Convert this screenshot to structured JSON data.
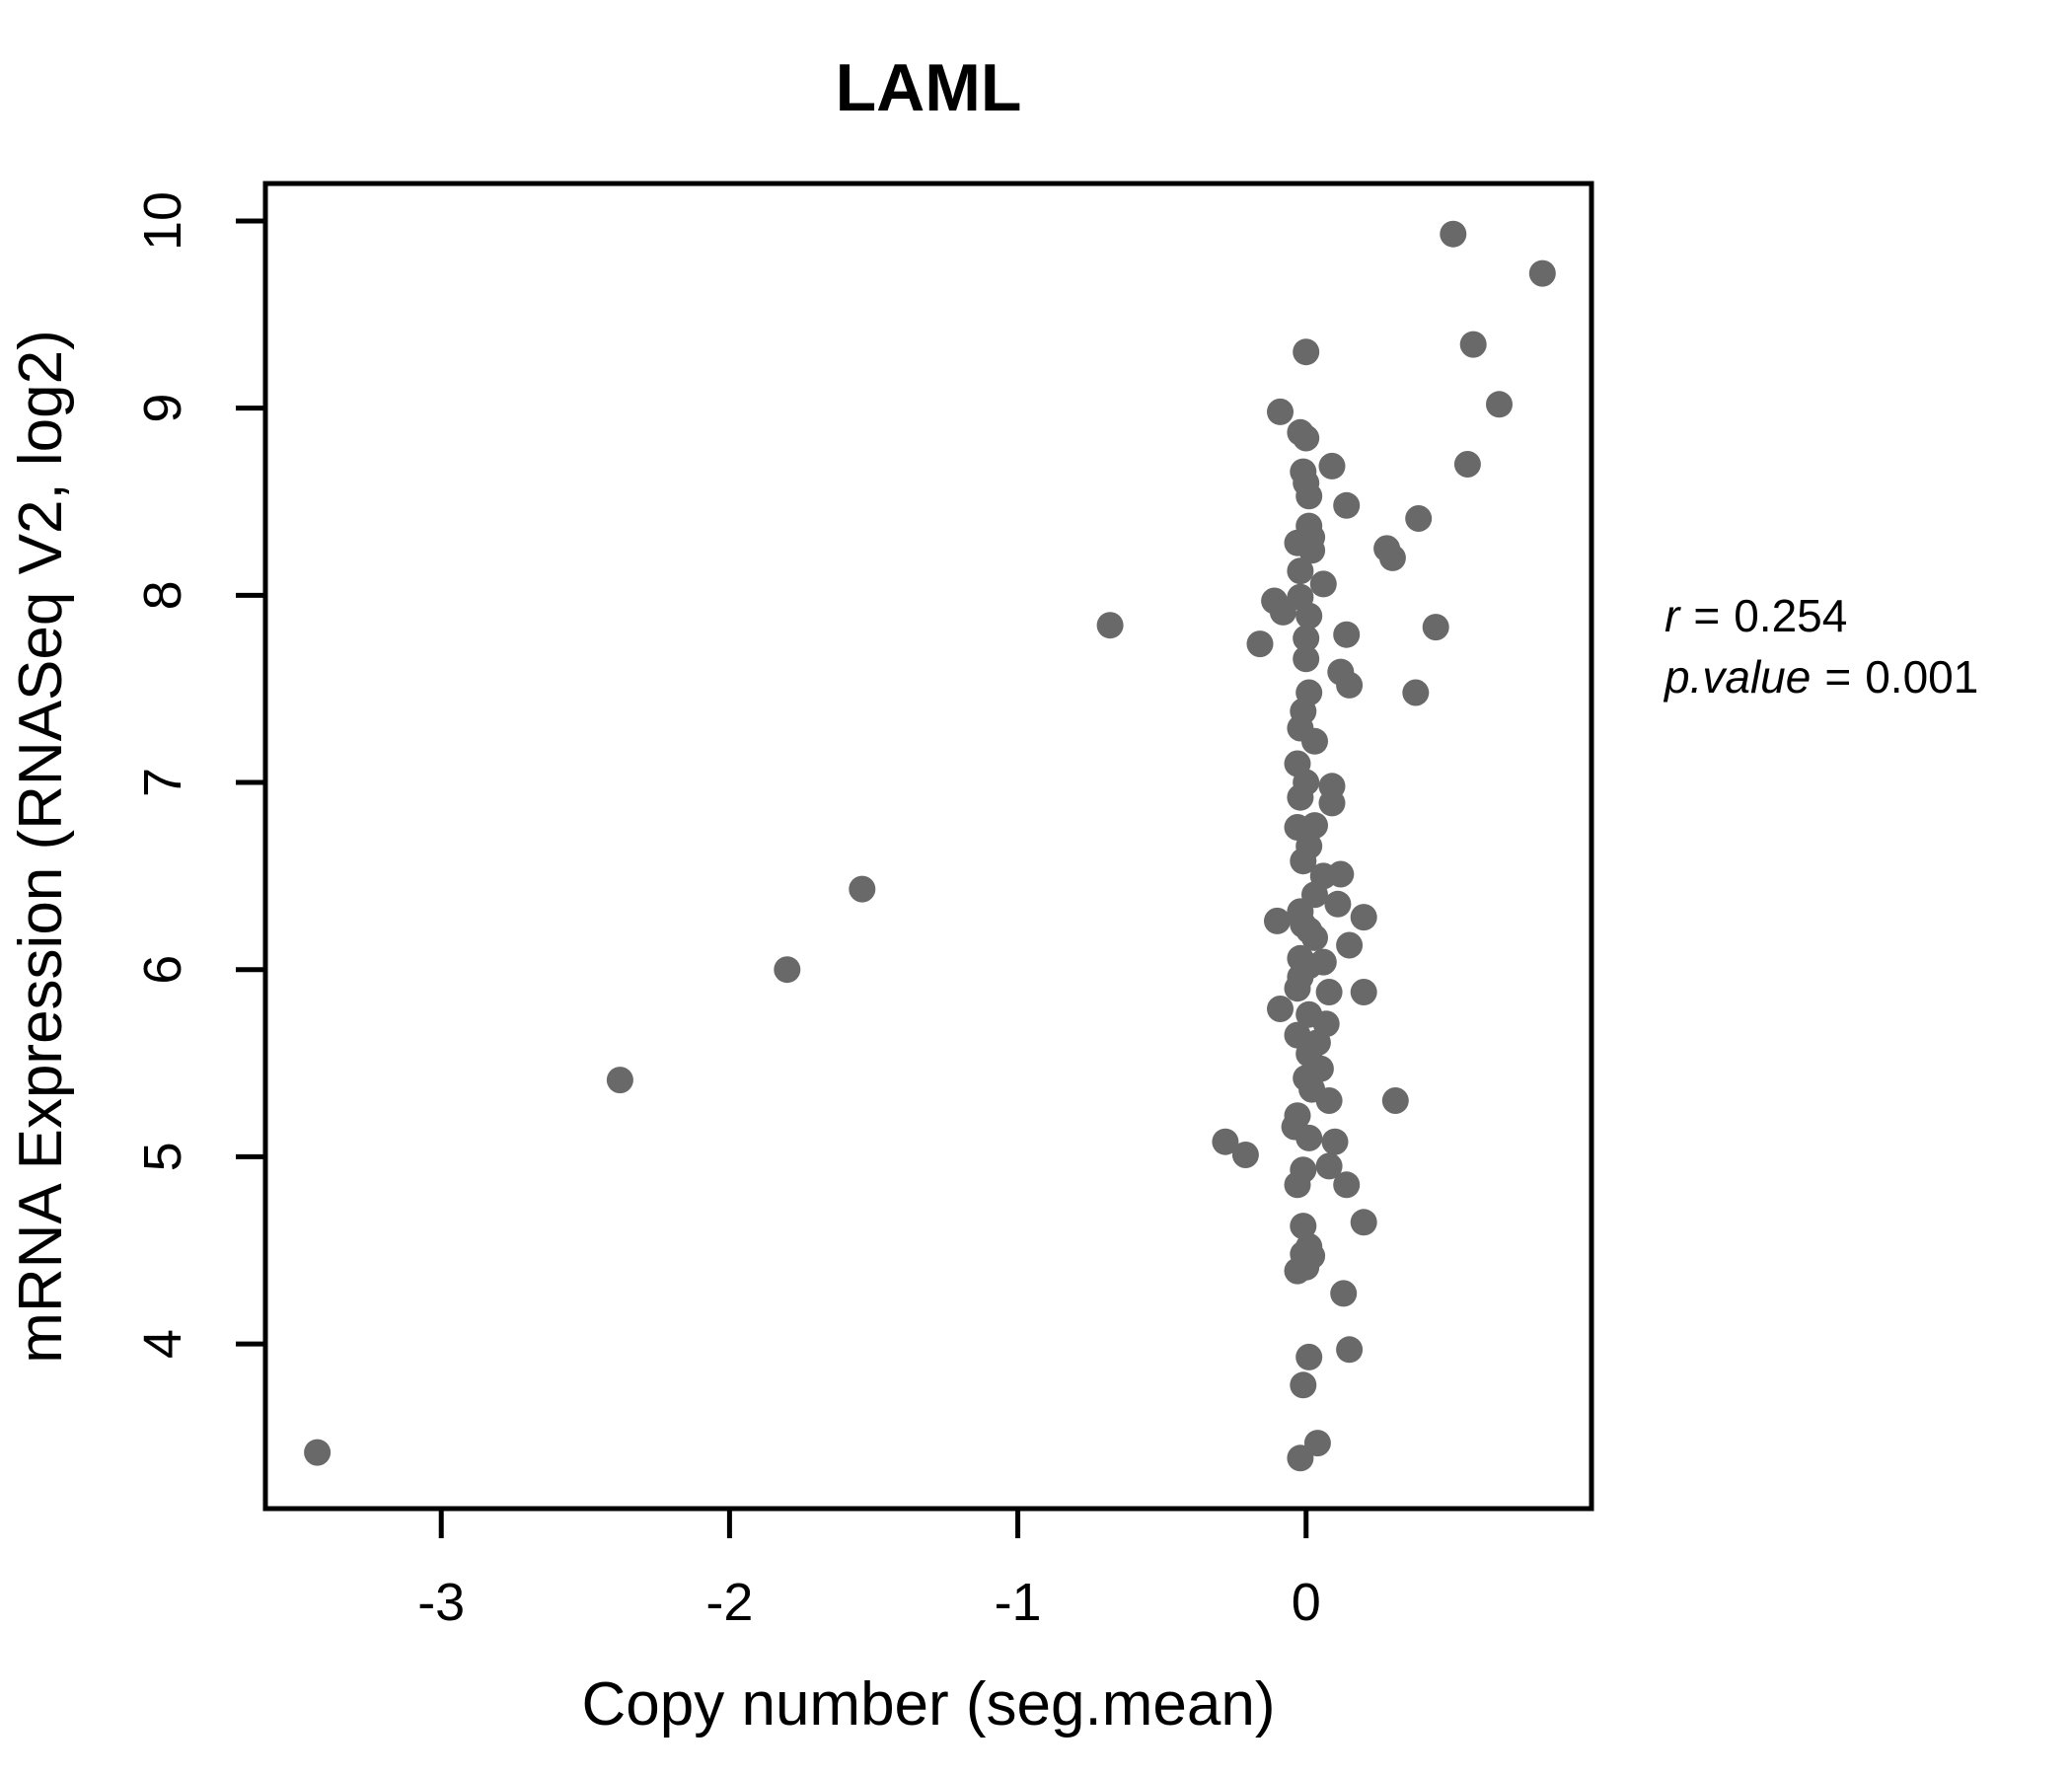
{
  "chart_data": {
    "type": "scatter",
    "title": "LAML",
    "xlabel": "Copy number (seg.mean)",
    "ylabel": "mRNA Expression (RNASeq V2, log2)",
    "xlim": [
      -3.61,
      0.99
    ],
    "ylim": [
      3.12,
      10.2
    ],
    "x_ticks": [
      "-3",
      "-2",
      "-1",
      "0"
    ],
    "x_tick_values": [
      -3,
      -2,
      -1,
      0
    ],
    "y_ticks": [
      "4",
      "5",
      "6",
      "7",
      "8",
      "9",
      "10"
    ],
    "y_tick_values": [
      4,
      5,
      6,
      7,
      8,
      9,
      10
    ],
    "grid": false,
    "legend": "none",
    "title_color": "#6b6b6b",
    "point_color": "#696969",
    "axis_color": "#000000",
    "annotation": {
      "lines": [
        {
          "var": "r",
          "eq": "=",
          "value": "0.254"
        },
        {
          "var": "p.value",
          "eq": "=",
          "value": "0.001"
        }
      ]
    },
    "points": [
      [
        -3.43,
        3.42
      ],
      [
        -2.38,
        5.41
      ],
      [
        -1.8,
        6.0
      ],
      [
        -1.54,
        6.43
      ],
      [
        -0.68,
        7.84
      ],
      [
        -0.28,
        5.08
      ],
      [
        -0.21,
        5.01
      ],
      [
        -0.16,
        7.74
      ],
      [
        -0.11,
        7.97
      ],
      [
        -0.08,
        7.91
      ],
      [
        0.51,
        9.93
      ],
      [
        0.82,
        9.72
      ],
      [
        0.58,
        9.34
      ],
      [
        0.67,
        9.02
      ],
      [
        0.56,
        8.7
      ],
      [
        0.39,
        8.41
      ],
      [
        0.28,
        8.25
      ],
      [
        0.3,
        8.2
      ],
      [
        0.45,
        7.83
      ],
      [
        0.38,
        7.48
      ],
      [
        0.0,
        9.3
      ],
      [
        -0.09,
        8.98
      ],
      [
        -0.02,
        8.87
      ],
      [
        0.0,
        8.84
      ],
      [
        0.09,
        8.69
      ],
      [
        -0.01,
        8.66
      ],
      [
        0.0,
        8.6
      ],
      [
        0.01,
        8.53
      ],
      [
        0.14,
        8.48
      ],
      [
        0.01,
        8.37
      ],
      [
        0.02,
        8.31
      ],
      [
        -0.03,
        8.28
      ],
      [
        0.02,
        8.24
      ],
      [
        -0.02,
        8.13
      ],
      [
        0.06,
        8.06
      ],
      [
        -0.02,
        7.99
      ],
      [
        0.01,
        7.89
      ],
      [
        0.0,
        7.77
      ],
      [
        0.14,
        7.79
      ],
      [
        0.0,
        7.66
      ],
      [
        0.12,
        7.59
      ],
      [
        0.15,
        7.52
      ],
      [
        0.01,
        7.48
      ],
      [
        -0.01,
        7.38
      ],
      [
        -0.02,
        7.29
      ],
      [
        0.03,
        7.22
      ],
      [
        -0.03,
        7.1
      ],
      [
        0.0,
        7.0
      ],
      [
        0.09,
        6.98
      ],
      [
        -0.02,
        6.92
      ],
      [
        0.09,
        6.89
      ],
      [
        -0.03,
        6.76
      ],
      [
        0.03,
        6.77
      ],
      [
        0.01,
        6.66
      ],
      [
        -0.01,
        6.58
      ],
      [
        0.06,
        6.5
      ],
      [
        0.12,
        6.51
      ],
      [
        0.03,
        6.4
      ],
      [
        0.11,
        6.35
      ],
      [
        -0.02,
        6.31
      ],
      [
        -0.1,
        6.26
      ],
      [
        0.2,
        6.28
      ],
      [
        -0.01,
        6.24
      ],
      [
        0.01,
        6.21
      ],
      [
        0.03,
        6.17
      ],
      [
        0.15,
        6.13
      ],
      [
        -0.02,
        6.06
      ],
      [
        0.06,
        6.04
      ],
      [
        0.01,
        6.02
      ],
      [
        -0.02,
        5.96
      ],
      [
        -0.03,
        5.9
      ],
      [
        0.08,
        5.88
      ],
      [
        0.2,
        5.88
      ],
      [
        -0.09,
        5.79
      ],
      [
        0.01,
        5.76
      ],
      [
        0.07,
        5.71
      ],
      [
        -0.03,
        5.65
      ],
      [
        0.04,
        5.61
      ],
      [
        0.01,
        5.55
      ],
      [
        0.05,
        5.47
      ],
      [
        0.0,
        5.42
      ],
      [
        0.02,
        5.36
      ],
      [
        0.08,
        5.3
      ],
      [
        0.31,
        5.3
      ],
      [
        -0.03,
        5.22
      ],
      [
        -0.04,
        5.16
      ],
      [
        0.01,
        5.1
      ],
      [
        0.1,
        5.08
      ],
      [
        -0.01,
        4.93
      ],
      [
        0.08,
        4.95
      ],
      [
        -0.03,
        4.85
      ],
      [
        0.14,
        4.85
      ],
      [
        0.2,
        4.65
      ],
      [
        -0.01,
        4.63
      ],
      [
        0.01,
        4.52
      ],
      [
        -0.01,
        4.48
      ],
      [
        0.02,
        4.47
      ],
      [
        0.0,
        4.41
      ],
      [
        -0.03,
        4.39
      ],
      [
        0.13,
        4.27
      ],
      [
        0.15,
        3.97
      ],
      [
        0.01,
        3.93
      ],
      [
        -0.01,
        3.78
      ],
      [
        0.04,
        3.47
      ],
      [
        -0.02,
        3.39
      ]
    ]
  }
}
